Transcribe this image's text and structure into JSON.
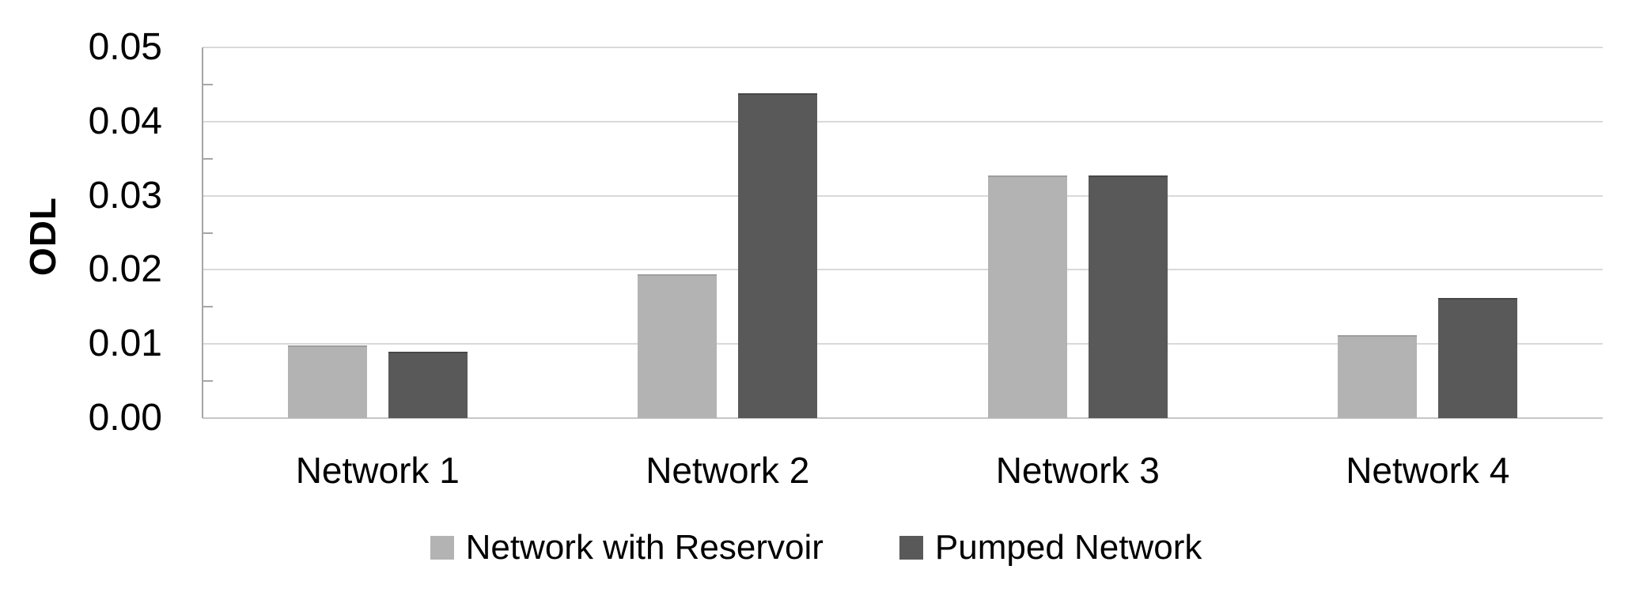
{
  "chart_data": {
    "type": "bar",
    "title": "",
    "ylabel": "ODL",
    "xlabel": "",
    "categories": [
      "Network 1",
      "Network 2",
      "Network 3",
      "Network 4"
    ],
    "series": [
      {
        "name": "Network with Reservoir",
        "color": "#b3b3b3",
        "edge_color": "#9e9e9e",
        "values": [
          0.0098,
          0.0194,
          0.0327,
          0.0112
        ]
      },
      {
        "name": "Pumped Network",
        "color": "#595959",
        "edge_color": "#474747",
        "values": [
          0.009,
          0.0438,
          0.0327,
          0.0162
        ]
      }
    ],
    "ylim": [
      0,
      0.05
    ],
    "ytick_step": 0.01,
    "ytick_labels": [
      "0.00",
      "0.01",
      "0.02",
      "0.03",
      "0.04",
      "0.05"
    ],
    "minor_tick_step": 0.005,
    "grid": true,
    "legend_position": "bottom",
    "colors": {
      "gridline": "#d9d9d9",
      "baseline": "#c6c6c6",
      "axis": "#a6a6a6",
      "text": "#000000",
      "background": "#ffffff"
    }
  }
}
